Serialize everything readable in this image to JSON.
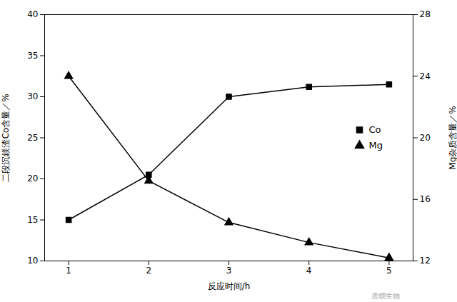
{
  "chart_data": {
    "type": "line",
    "x": [
      1,
      2,
      3,
      4,
      5
    ],
    "xlim": [
      0.7,
      5.3
    ],
    "xticks": [
      1,
      2,
      3,
      4,
      5
    ],
    "xlabel": "反应时间/h",
    "ylabel": "二段沉鎂渣Co含量／%",
    "y2label": "Mg杂质含量／%",
    "ylim": [
      10,
      40
    ],
    "yticks": [
      10,
      15,
      20,
      25,
      30,
      35,
      40
    ],
    "y2lim": [
      12,
      28
    ],
    "y2ticks": [
      12,
      16,
      20,
      24,
      28
    ],
    "series": [
      {
        "name": "Co",
        "color": "#000000",
        "marker": "square",
        "values": [
          15.0,
          20.5,
          30.0,
          31.2,
          31.5
        ]
      },
      {
        "name": "Mg",
        "color": "#000000",
        "marker": "triangle",
        "axis": "y2",
        "values": [
          24.0,
          17.2,
          14.5,
          13.2,
          12.2
        ]
      }
    ],
    "legend": "right",
    "grid": false,
    "annotations": [
      "袭燘生物"
    ]
  }
}
